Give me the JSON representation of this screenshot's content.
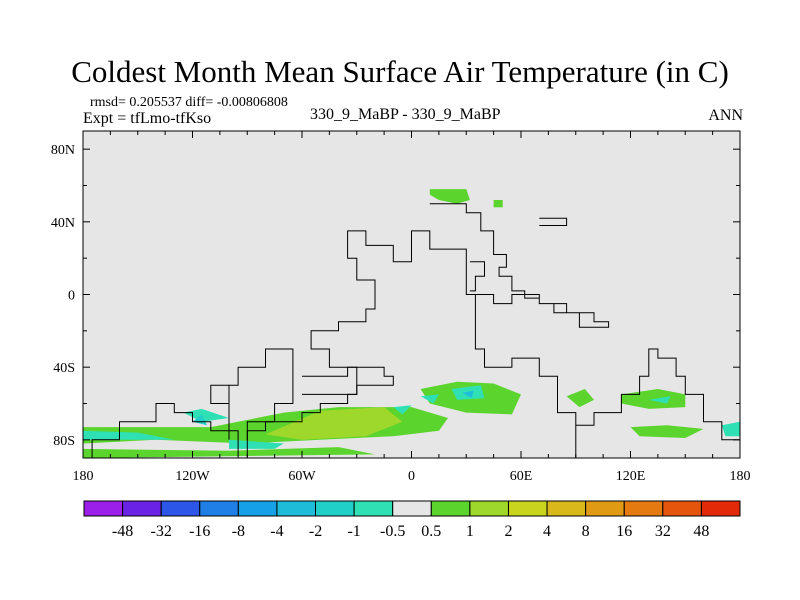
{
  "chart_data": {
    "type": "contour-map",
    "title": "Coldest Month Mean Surface Air Temperature (in C)",
    "stats": {
      "rmsd_label": "rmsd=",
      "rmsd": "0.205537",
      "diff_label": "diff=",
      "diff": "-0.00806808",
      "text": "rmsd= 0.205537 diff= -0.00806808"
    },
    "experiment": "Expt = tfLmo-tfKso",
    "case": "330_9_MaBP - 330_9_MaBP",
    "season": "ANN",
    "projection": "cylindrical-equidistant",
    "lon_range": [
      -180,
      180
    ],
    "lat_range": [
      -90,
      90
    ],
    "x_ticks": [
      {
        "value": -180,
        "label": "180"
      },
      {
        "value": -120,
        "label": "120W"
      },
      {
        "value": -60,
        "label": "60W"
      },
      {
        "value": 0,
        "label": "0"
      },
      {
        "value": 60,
        "label": "60E"
      },
      {
        "value": 120,
        "label": "120E"
      },
      {
        "value": 180,
        "label": "180"
      }
    ],
    "y_ticks": [
      {
        "value": 80,
        "label": "80N"
      },
      {
        "value": 40,
        "label": "40N"
      },
      {
        "value": 0,
        "label": "0"
      },
      {
        "value": -40,
        "label": "40S"
      },
      {
        "value": -80,
        "label": "80S"
      }
    ],
    "background_color": "#e6e6e6",
    "colorbar": {
      "levels": [
        "-48",
        "-32",
        "-16",
        "-8",
        "-4",
        "-2",
        "-1",
        "-0.5",
        "0.5",
        "1",
        "2",
        "4",
        "8",
        "16",
        "32",
        "48"
      ],
      "colors": [
        "#9b1fe8",
        "#6a23e5",
        "#2b56e8",
        "#1f7fe5",
        "#16a0e6",
        "#1ebcd8",
        "#20d0c8",
        "#2ee0b4",
        "#e6e6e6",
        "#5cd42e",
        "#9ed82a",
        "#c8d41e",
        "#d8b81a",
        "#e09a14",
        "#e47a10",
        "#e5560c",
        "#e22a08"
      ]
    },
    "continent_outlines_lonlat": [
      [
        [
          -90,
          -90
        ],
        [
          -90,
          -75
        ],
        [
          -80,
          -75
        ],
        [
          -80,
          -70
        ],
        [
          -60,
          -70
        ],
        [
          -60,
          -65
        ],
        [
          -50,
          -65
        ],
        [
          -50,
          -60
        ],
        [
          -35,
          -60
        ],
        [
          -35,
          -55
        ],
        [
          -30,
          -55
        ],
        [
          -30,
          -40
        ],
        [
          -45,
          -40
        ],
        [
          -45,
          -30
        ],
        [
          -55,
          -30
        ],
        [
          -55,
          -20
        ],
        [
          -40,
          -20
        ],
        [
          -40,
          -15
        ],
        [
          -25,
          -15
        ],
        [
          -25,
          -8
        ],
        [
          -20,
          -8
        ],
        [
          -20,
          8
        ],
        [
          -30,
          8
        ],
        [
          -30,
          20
        ],
        [
          -35,
          20
        ],
        [
          -35,
          35
        ],
        [
          -25,
          35
        ],
        [
          -25,
          27
        ],
        [
          -10,
          27
        ],
        [
          -10,
          18
        ],
        [
          0,
          18
        ],
        [
          0,
          35
        ],
        [
          10,
          35
        ],
        [
          10,
          25
        ],
        [
          30,
          25
        ],
        [
          30,
          0
        ],
        [
          35,
          0
        ],
        [
          35,
          -30
        ],
        [
          40,
          -30
        ],
        [
          40,
          -40
        ],
        [
          55,
          -40
        ],
        [
          55,
          -35
        ],
        [
          70,
          -35
        ],
        [
          70,
          -45
        ],
        [
          80,
          -45
        ],
        [
          80,
          -65
        ],
        [
          90,
          -65
        ],
        [
          90,
          -90
        ]
      ],
      [
        [
          -95,
          -90
        ],
        [
          -95,
          -75
        ],
        [
          -110,
          -75
        ],
        [
          -110,
          -70
        ],
        [
          -120,
          -70
        ],
        [
          -120,
          -65
        ],
        [
          -130,
          -65
        ],
        [
          -130,
          -60
        ],
        [
          -140,
          -60
        ],
        [
          -140,
          -70
        ],
        [
          -160,
          -70
        ],
        [
          -160,
          -80
        ],
        [
          -175,
          -80
        ],
        [
          -175,
          -90
        ]
      ],
      [
        [
          -100,
          -80
        ],
        [
          -100,
          -50
        ],
        [
          -95,
          -50
        ],
        [
          -95,
          -40
        ],
        [
          -80,
          -40
        ],
        [
          -80,
          -30
        ],
        [
          -65,
          -30
        ],
        [
          -65,
          -60
        ],
        [
          -75,
          -60
        ],
        [
          -75,
          -70
        ],
        [
          -90,
          -70
        ],
        [
          -90,
          -80
        ]
      ],
      [
        [
          -100,
          -50
        ],
        [
          -110,
          -50
        ],
        [
          -110,
          -60
        ],
        [
          -100,
          -60
        ]
      ],
      [
        [
          -60,
          -45
        ],
        [
          -35,
          -45
        ],
        [
          -35,
          -40
        ],
        [
          -15,
          -40
        ],
        [
          -15,
          -45
        ],
        [
          -10,
          -45
        ],
        [
          -10,
          -50
        ],
        [
          -30,
          -50
        ],
        [
          -30,
          -55
        ],
        [
          -60,
          -55
        ]
      ],
      [
        [
          10,
          50
        ],
        [
          30,
          50
        ],
        [
          30,
          45
        ],
        [
          38,
          45
        ],
        [
          38,
          35
        ],
        [
          45,
          35
        ],
        [
          45,
          22
        ],
        [
          52,
          22
        ],
        [
          52,
          15
        ],
        [
          48,
          15
        ],
        [
          48,
          10
        ],
        [
          55,
          10
        ],
        [
          55,
          2
        ],
        [
          62,
          2
        ],
        [
          62,
          -2
        ],
        [
          70,
          -2
        ],
        [
          70,
          -5
        ],
        [
          85,
          -5
        ],
        [
          85,
          -10
        ],
        [
          100,
          -10
        ],
        [
          100,
          -15
        ],
        [
          108,
          -15
        ],
        [
          108,
          -18
        ],
        [
          92,
          -18
        ],
        [
          92,
          -10
        ],
        [
          78,
          -10
        ],
        [
          78,
          -5
        ],
        [
          70,
          -5
        ],
        [
          70,
          0
        ],
        [
          55,
          0
        ],
        [
          55,
          -5
        ],
        [
          45,
          -5
        ],
        [
          45,
          0
        ],
        [
          35,
          0
        ]
      ],
      [
        [
          70,
          38
        ],
        [
          85,
          38
        ],
        [
          85,
          42
        ],
        [
          70,
          42
        ]
      ],
      [
        [
          90,
          -72
        ],
        [
          100,
          -72
        ],
        [
          100,
          -65
        ],
        [
          115,
          -65
        ],
        [
          115,
          -55
        ],
        [
          125,
          -55
        ],
        [
          125,
          -45
        ],
        [
          130,
          -45
        ],
        [
          130,
          -30
        ],
        [
          135,
          -30
        ],
        [
          135,
          -35
        ],
        [
          145,
          -35
        ],
        [
          145,
          -45
        ],
        [
          150,
          -45
        ],
        [
          150,
          -55
        ],
        [
          160,
          -55
        ],
        [
          160,
          -70
        ],
        [
          170,
          -70
        ],
        [
          170,
          -80
        ],
        [
          180,
          -80
        ]
      ],
      [
        [
          32,
          18
        ],
        [
          40,
          18
        ],
        [
          40,
          10
        ],
        [
          35,
          10
        ],
        [
          35,
          2
        ],
        [
          32,
          2
        ]
      ]
    ],
    "positive_regions_lonlat": [
      {
        "color": "#5cd42e",
        "points": [
          [
            10,
            58
          ],
          [
            30,
            58
          ],
          [
            32,
            52
          ],
          [
            25,
            50
          ],
          [
            15,
            52
          ],
          [
            10,
            55
          ]
        ]
      },
      {
        "color": "#5cd42e",
        "points": [
          [
            45,
            52
          ],
          [
            50,
            52
          ],
          [
            50,
            48
          ],
          [
            45,
            48
          ]
        ]
      },
      {
        "color": "#5cd42e",
        "points": [
          [
            -180,
            -73
          ],
          [
            -110,
            -73
          ],
          [
            -70,
            -65
          ],
          [
            -40,
            -62
          ],
          [
            0,
            -62
          ],
          [
            20,
            -68
          ],
          [
            15,
            -75
          ],
          [
            -10,
            -78
          ],
          [
            -50,
            -80
          ],
          [
            -90,
            -82
          ],
          [
            -140,
            -80
          ],
          [
            -180,
            -82
          ]
        ]
      },
      {
        "color": "#9ed82a",
        "points": [
          [
            -50,
            -64
          ],
          [
            -15,
            -62
          ],
          [
            -5,
            -70
          ],
          [
            -25,
            -78
          ],
          [
            -60,
            -80
          ],
          [
            -80,
            -77
          ]
        ]
      },
      {
        "color": "#5cd42e",
        "points": [
          [
            5,
            -52
          ],
          [
            25,
            -48
          ],
          [
            45,
            -49
          ],
          [
            60,
            -55
          ],
          [
            55,
            -66
          ],
          [
            30,
            -65
          ],
          [
            10,
            -60
          ]
        ]
      },
      {
        "color": "#5cd42e",
        "points": [
          [
            85,
            -56
          ],
          [
            95,
            -52
          ],
          [
            100,
            -58
          ],
          [
            92,
            -62
          ]
        ]
      },
      {
        "color": "#5cd42e",
        "points": [
          [
            115,
            -55
          ],
          [
            135,
            -52
          ],
          [
            150,
            -55
          ],
          [
            150,
            -62
          ],
          [
            130,
            -63
          ],
          [
            115,
            -60
          ]
        ]
      },
      {
        "color": "#5cd42e",
        "points": [
          [
            120,
            -73
          ],
          [
            140,
            -72
          ],
          [
            160,
            -74
          ],
          [
            150,
            -79
          ],
          [
            125,
            -78
          ]
        ]
      },
      {
        "color": "#5cd42e",
        "points": [
          [
            -180,
            -85
          ],
          [
            -100,
            -86
          ],
          [
            -40,
            -84
          ],
          [
            -20,
            -88
          ],
          [
            -180,
            -90
          ]
        ]
      }
    ],
    "negative_regions_lonlat": [
      {
        "color": "#2ee0b4",
        "points": [
          [
            -125,
            -65
          ],
          [
            -115,
            -63
          ],
          [
            -100,
            -68
          ],
          [
            -115,
            -70
          ]
        ]
      },
      {
        "color": "#2ee0b4",
        "points": [
          [
            -180,
            -75
          ],
          [
            -150,
            -76
          ],
          [
            -130,
            -80
          ],
          [
            -180,
            -80
          ]
        ]
      },
      {
        "color": "#20d0c8",
        "points": [
          [
            -120,
            -70
          ],
          [
            -115,
            -66
          ],
          [
            -112,
            -72
          ]
        ]
      },
      {
        "color": "#2ee0b4",
        "points": [
          [
            22,
            -52
          ],
          [
            38,
            -50
          ],
          [
            40,
            -57
          ],
          [
            25,
            -58
          ]
        ]
      },
      {
        "color": "#1ebcd8",
        "points": [
          [
            28,
            -54
          ],
          [
            34,
            -53
          ],
          [
            33,
            -57
          ]
        ]
      },
      {
        "color": "#2ee0b4",
        "points": [
          [
            5,
            -56
          ],
          [
            15,
            -55
          ],
          [
            12,
            -60
          ]
        ]
      },
      {
        "color": "#2ee0b4",
        "points": [
          [
            -10,
            -62
          ],
          [
            0,
            -61
          ],
          [
            -5,
            -66
          ]
        ]
      },
      {
        "color": "#2ee0b4",
        "points": [
          [
            130,
            -58
          ],
          [
            142,
            -56
          ],
          [
            140,
            -60
          ]
        ]
      },
      {
        "color": "#2ee0b4",
        "points": [
          [
            170,
            -72
          ],
          [
            180,
            -70
          ],
          [
            180,
            -78
          ],
          [
            172,
            -78
          ]
        ]
      },
      {
        "color": "#2ee0b4",
        "points": [
          [
            -100,
            -80
          ],
          [
            -70,
            -82
          ],
          [
            -75,
            -85
          ],
          [
            -100,
            -85
          ]
        ]
      }
    ]
  }
}
